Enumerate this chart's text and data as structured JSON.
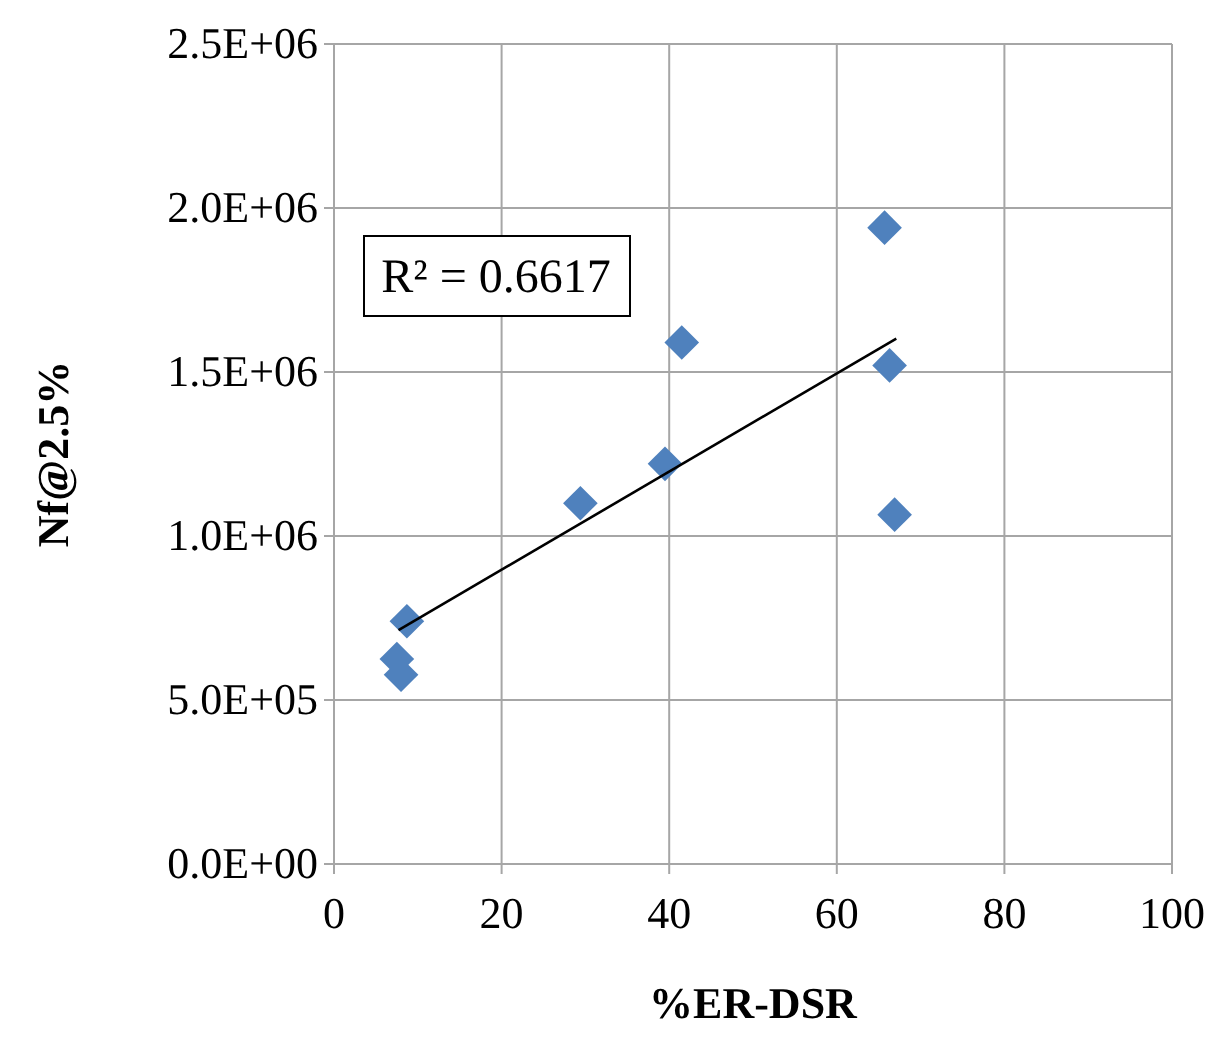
{
  "chart_data": {
    "type": "scatter",
    "xlabel": "%ER-DSR",
    "ylabel": "Nf@2.5%",
    "grid": true,
    "xlim": [
      0,
      100
    ],
    "xticks": [
      0,
      20,
      40,
      60,
      80,
      100
    ],
    "ylim": [
      0,
      2500000
    ],
    "yticks": [
      {
        "value": 0,
        "label": "0.0E+00"
      },
      {
        "value": 500000,
        "label": "5.0E+05"
      },
      {
        "value": 1000000,
        "label": "1.0E+06"
      },
      {
        "value": 1500000,
        "label": "1.5E+06"
      },
      {
        "value": 2000000,
        "label": "2.0E+06"
      },
      {
        "value": 2500000,
        "label": "2.5E+06"
      }
    ],
    "annotations": [
      "R² = 0.6617"
    ],
    "series": [
      {
        "color": "#4f81bd",
        "marker": "diamond",
        "x": [
          65.7,
          41.5,
          66.3,
          39.5,
          29.4,
          66.9,
          8.7,
          7.5,
          8.0
        ],
        "values": [
          1940000,
          1590000,
          1520000,
          1220000,
          1100000,
          1065000,
          740000,
          625000,
          577000
        ]
      },
      {
        "type": "line",
        "color": "#000000",
        "marker": "none",
        "x": [
          7.7,
          67.1
        ],
        "values": [
          713000,
          1602000
        ]
      }
    ]
  }
}
